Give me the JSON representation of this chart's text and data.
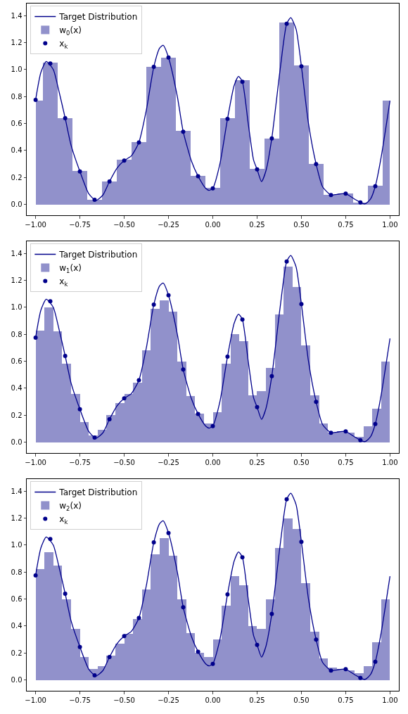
{
  "chart_data": [
    {
      "type": "histogram",
      "legend": "top left",
      "grid": false,
      "xlim": [
        -1.05,
        1.05
      ],
      "ylim": [
        -0.08,
        1.49
      ],
      "xticks": [
        {
          "value": -1,
          "label": "−1.00"
        },
        {
          "value": -0.75,
          "label": "−0.75"
        },
        {
          "value": -0.5,
          "label": "−0.50"
        },
        {
          "value": -0.25,
          "label": "−0.25"
        },
        {
          "value": 0,
          "label": "0.00"
        },
        {
          "value": 0.25,
          "label": "0.25"
        },
        {
          "value": 0.5,
          "label": "0.50"
        },
        {
          "value": 0.75,
          "label": "0.75"
        },
        {
          "value": 1,
          "label": "1.00"
        }
      ],
      "yticks": [
        {
          "value": 0,
          "label": "0.0"
        },
        {
          "value": 0.2,
          "label": "0.2"
        },
        {
          "value": 0.4,
          "label": "0.4"
        },
        {
          "value": 0.6,
          "label": "0.6"
        },
        {
          "value": 0.8,
          "label": "0.8"
        },
        {
          "value": 1,
          "label": "1.0"
        },
        {
          "value": 1.2,
          "label": "1.2"
        },
        {
          "value": 1.4,
          "label": "1.4"
        }
      ],
      "series": [
        {
          "type": "line",
          "name": "Target Distribution",
          "color": "#00008b",
          "x": [
            -1,
            -0.97,
            -0.94,
            -0.9,
            -0.87,
            -0.833,
            -0.8,
            -0.75,
            -0.7,
            -0.66,
            -0.62,
            -0.583,
            -0.54,
            -0.5,
            -0.46,
            -0.417,
            -0.375,
            -0.333,
            -0.3,
            -0.28,
            -0.25,
            -0.2,
            -0.167,
            -0.12,
            -0.083,
            -0.04,
            -0.02,
            0,
            0.04,
            0.083,
            0.12,
            0.145,
            0.167,
            0.2,
            0.23,
            0.25,
            0.275,
            0.3,
            0.333,
            0.38,
            0.417,
            0.44,
            0.47,
            0.5,
            0.54,
            0.583,
            0.62,
            0.667,
            0.7,
            0.75,
            0.8,
            0.833,
            0.86,
            0.89,
            0.917,
            0.95,
            1
          ],
          "values": [
            0.775,
            0.98,
            1.06,
            1.0,
            0.85,
            0.64,
            0.44,
            0.245,
            0.08,
            0.03,
            0.07,
            0.17,
            0.27,
            0.325,
            0.36,
            0.46,
            0.7,
            1.02,
            1.16,
            1.18,
            1.09,
            0.8,
            0.54,
            0.32,
            0.21,
            0.12,
            0.105,
            0.12,
            0.3,
            0.635,
            0.88,
            0.95,
            0.91,
            0.6,
            0.33,
            0.26,
            0.17,
            0.25,
            0.49,
            1.0,
            1.34,
            1.385,
            1.3,
            1.025,
            0.6,
            0.3,
            0.13,
            0.07,
            0.075,
            0.08,
            0.04,
            0.015,
            0.005,
            0.04,
            0.135,
            0.35,
            0.77
          ]
        },
        {
          "name": "w$_{0}$(x)",
          "color": "#9191cb",
          "bins": [
            -1,
            -0.958,
            -0.875,
            -0.792,
            -0.708,
            -0.625,
            -0.542,
            -0.458,
            -0.375,
            -0.292,
            -0.208,
            -0.125,
            -0.042,
            0.042,
            0.125,
            0.208,
            0.292,
            0.375,
            0.458,
            0.542,
            0.625,
            0.708,
            0.792,
            0.875,
            0.958,
            1
          ],
          "values": [
            0.77,
            1.05,
            0.64,
            0.25,
            0.035,
            0.17,
            0.33,
            0.46,
            1.02,
            1.09,
            0.545,
            0.21,
            0.125,
            0.64,
            0.92,
            0.265,
            0.49,
            1.35,
            1.03,
            0.3,
            0.07,
            0.08,
            0.015,
            0.14,
            0.77
          ]
        },
        {
          "type": "scatter",
          "name": "x$_{k}$",
          "color": "#00008b",
          "marker": "circle",
          "x": [
            -1,
            -0.917,
            -0.833,
            -0.75,
            -0.667,
            -0.583,
            -0.5,
            -0.417,
            -0.333,
            -0.25,
            -0.167,
            -0.083,
            0,
            0.083,
            0.167,
            0.25,
            0.333,
            0.417,
            0.5,
            0.583,
            0.667,
            0.75,
            0.833,
            0.917
          ],
          "values": [
            0.775,
            1.045,
            0.64,
            0.245,
            0.035,
            0.17,
            0.325,
            0.46,
            1.02,
            1.09,
            0.54,
            0.21,
            0.12,
            0.635,
            0.91,
            0.26,
            0.49,
            1.34,
            1.025,
            0.3,
            0.07,
            0.08,
            0.015,
            0.135
          ]
        }
      ]
    },
    {
      "type": "histogram",
      "legend": "top left",
      "grid": false,
      "xlim": [
        -1.05,
        1.05
      ],
      "ylim": [
        -0.08,
        1.49
      ],
      "xticks": [
        {
          "value": -1,
          "label": "−1.00"
        },
        {
          "value": -0.75,
          "label": "−0.75"
        },
        {
          "value": -0.5,
          "label": "−0.50"
        },
        {
          "value": -0.25,
          "label": "−0.25"
        },
        {
          "value": 0,
          "label": "0.00"
        },
        {
          "value": 0.25,
          "label": "0.25"
        },
        {
          "value": 0.5,
          "label": "0.50"
        },
        {
          "value": 0.75,
          "label": "0.75"
        },
        {
          "value": 1,
          "label": "1.00"
        }
      ],
      "yticks": [
        {
          "value": 0,
          "label": "0.0"
        },
        {
          "value": 0.2,
          "label": "0.2"
        },
        {
          "value": 0.4,
          "label": "0.4"
        },
        {
          "value": 0.6,
          "label": "0.6"
        },
        {
          "value": 0.8,
          "label": "0.8"
        },
        {
          "value": 1,
          "label": "1.0"
        },
        {
          "value": 1.2,
          "label": "1.2"
        },
        {
          "value": 1.4,
          "label": "1.4"
        }
      ],
      "series": [
        {
          "type": "line",
          "name": "Target Distribution",
          "color": "#00008b",
          "x": [
            -1,
            -0.97,
            -0.94,
            -0.9,
            -0.87,
            -0.833,
            -0.8,
            -0.75,
            -0.7,
            -0.66,
            -0.62,
            -0.583,
            -0.54,
            -0.5,
            -0.46,
            -0.417,
            -0.375,
            -0.333,
            -0.3,
            -0.28,
            -0.25,
            -0.2,
            -0.167,
            -0.12,
            -0.083,
            -0.04,
            -0.02,
            0,
            0.04,
            0.083,
            0.12,
            0.145,
            0.167,
            0.2,
            0.23,
            0.25,
            0.275,
            0.3,
            0.333,
            0.38,
            0.417,
            0.44,
            0.47,
            0.5,
            0.54,
            0.583,
            0.62,
            0.667,
            0.7,
            0.75,
            0.8,
            0.833,
            0.86,
            0.89,
            0.917,
            0.95,
            1
          ],
          "values": [
            0.775,
            0.98,
            1.06,
            1.0,
            0.85,
            0.64,
            0.44,
            0.245,
            0.08,
            0.03,
            0.07,
            0.17,
            0.27,
            0.325,
            0.36,
            0.46,
            0.7,
            1.02,
            1.16,
            1.18,
            1.09,
            0.8,
            0.54,
            0.32,
            0.21,
            0.12,
            0.105,
            0.12,
            0.3,
            0.635,
            0.88,
            0.95,
            0.91,
            0.6,
            0.33,
            0.26,
            0.17,
            0.25,
            0.49,
            1.0,
            1.34,
            1.385,
            1.3,
            1.025,
            0.6,
            0.3,
            0.13,
            0.07,
            0.075,
            0.08,
            0.04,
            0.015,
            0.005,
            0.04,
            0.135,
            0.35,
            0.77
          ]
        },
        {
          "name": "w$_{1}$(x)",
          "color": "#9191cb",
          "bins": [
            -1,
            -0.95,
            -0.9,
            -0.85,
            -0.8,
            -0.75,
            -0.7,
            -0.65,
            -0.6,
            -0.55,
            -0.5,
            -0.45,
            -0.4,
            -0.35,
            -0.3,
            -0.25,
            -0.2,
            -0.15,
            -0.1,
            -0.05,
            0,
            0.05,
            0.1,
            0.15,
            0.2,
            0.25,
            0.3,
            0.35,
            0.4,
            0.45,
            0.5,
            0.55,
            0.6,
            0.65,
            0.7,
            0.75,
            0.8,
            0.85,
            0.9,
            0.95,
            1
          ],
          "values": [
            0.83,
            1.0,
            0.82,
            0.58,
            0.36,
            0.15,
            0.05,
            0.09,
            0.2,
            0.29,
            0.36,
            0.44,
            0.68,
            0.99,
            1.05,
            0.97,
            0.6,
            0.34,
            0.21,
            0.14,
            0.22,
            0.58,
            0.8,
            0.75,
            0.35,
            0.38,
            0.55,
            0.95,
            1.3,
            1.15,
            0.72,
            0.35,
            0.14,
            0.07,
            0.08,
            0.07,
            0.04,
            0.12,
            0.25,
            0.6
          ]
        },
        {
          "type": "scatter",
          "name": "x$_{k}$",
          "color": "#00008b",
          "marker": "circle",
          "x": [
            -1,
            -0.917,
            -0.833,
            -0.75,
            -0.667,
            -0.583,
            -0.5,
            -0.417,
            -0.333,
            -0.25,
            -0.167,
            -0.083,
            0,
            0.083,
            0.167,
            0.25,
            0.333,
            0.417,
            0.5,
            0.583,
            0.667,
            0.75,
            0.833,
            0.917
          ],
          "values": [
            0.775,
            1.045,
            0.64,
            0.245,
            0.035,
            0.17,
            0.325,
            0.46,
            1.02,
            1.09,
            0.54,
            0.21,
            0.12,
            0.635,
            0.91,
            0.26,
            0.49,
            1.34,
            1.025,
            0.3,
            0.07,
            0.08,
            0.015,
            0.135
          ]
        }
      ]
    },
    {
      "type": "histogram",
      "legend": "top left",
      "grid": false,
      "xlim": [
        -1.05,
        1.05
      ],
      "ylim": [
        -0.08,
        1.49
      ],
      "xticks": [
        {
          "value": -1,
          "label": "−1.00"
        },
        {
          "value": -0.75,
          "label": "−0.75"
        },
        {
          "value": -0.5,
          "label": "−0.50"
        },
        {
          "value": -0.25,
          "label": "−0.25"
        },
        {
          "value": 0,
          "label": "0.00"
        },
        {
          "value": 0.25,
          "label": "0.25"
        },
        {
          "value": 0.5,
          "label": "0.50"
        },
        {
          "value": 0.75,
          "label": "0.75"
        },
        {
          "value": 1,
          "label": "1.00"
        }
      ],
      "yticks": [
        {
          "value": 0,
          "label": "0.0"
        },
        {
          "value": 0.2,
          "label": "0.2"
        },
        {
          "value": 0.4,
          "label": "0.4"
        },
        {
          "value": 0.6,
          "label": "0.6"
        },
        {
          "value": 0.8,
          "label": "0.8"
        },
        {
          "value": 1,
          "label": "1.0"
        },
        {
          "value": 1.2,
          "label": "1.2"
        },
        {
          "value": 1.4,
          "label": "1.4"
        }
      ],
      "series": [
        {
          "type": "line",
          "name": "Target Distribution",
          "color": "#00008b",
          "x": [
            -1,
            -0.97,
            -0.94,
            -0.9,
            -0.87,
            -0.833,
            -0.8,
            -0.75,
            -0.7,
            -0.66,
            -0.62,
            -0.583,
            -0.54,
            -0.5,
            -0.46,
            -0.417,
            -0.375,
            -0.333,
            -0.3,
            -0.28,
            -0.25,
            -0.2,
            -0.167,
            -0.12,
            -0.083,
            -0.04,
            -0.02,
            0,
            0.04,
            0.083,
            0.12,
            0.145,
            0.167,
            0.2,
            0.23,
            0.25,
            0.275,
            0.3,
            0.333,
            0.38,
            0.417,
            0.44,
            0.47,
            0.5,
            0.54,
            0.583,
            0.62,
            0.667,
            0.7,
            0.75,
            0.8,
            0.833,
            0.86,
            0.89,
            0.917,
            0.95,
            1
          ],
          "values": [
            0.775,
            0.98,
            1.06,
            1.0,
            0.85,
            0.64,
            0.44,
            0.245,
            0.08,
            0.03,
            0.07,
            0.17,
            0.27,
            0.325,
            0.36,
            0.46,
            0.7,
            1.02,
            1.16,
            1.18,
            1.09,
            0.8,
            0.54,
            0.32,
            0.21,
            0.12,
            0.105,
            0.12,
            0.3,
            0.635,
            0.88,
            0.95,
            0.91,
            0.6,
            0.33,
            0.26,
            0.17,
            0.25,
            0.49,
            1.0,
            1.34,
            1.385,
            1.3,
            1.025,
            0.6,
            0.3,
            0.13,
            0.07,
            0.075,
            0.08,
            0.04,
            0.015,
            0.005,
            0.04,
            0.135,
            0.35,
            0.77
          ]
        },
        {
          "name": "w$_{2}$(x)",
          "color": "#9191cb",
          "bins": [
            -1,
            -0.95,
            -0.9,
            -0.85,
            -0.8,
            -0.75,
            -0.7,
            -0.65,
            -0.6,
            -0.55,
            -0.5,
            -0.45,
            -0.4,
            -0.35,
            -0.3,
            -0.25,
            -0.2,
            -0.15,
            -0.1,
            -0.05,
            0,
            0.05,
            0.1,
            0.15,
            0.2,
            0.25,
            0.3,
            0.35,
            0.4,
            0.45,
            0.5,
            0.55,
            0.6,
            0.65,
            0.7,
            0.75,
            0.8,
            0.85,
            0.9,
            0.95,
            1
          ],
          "values": [
            0.82,
            0.95,
            0.85,
            0.6,
            0.38,
            0.17,
            0.08,
            0.1,
            0.18,
            0.27,
            0.34,
            0.45,
            0.67,
            0.93,
            1.05,
            0.92,
            0.6,
            0.35,
            0.2,
            0.17,
            0.3,
            0.55,
            0.77,
            0.7,
            0.4,
            0.38,
            0.6,
            0.98,
            1.2,
            1.12,
            0.72,
            0.36,
            0.16,
            0.09,
            0.08,
            0.07,
            0.05,
            0.1,
            0.28,
            0.6
          ]
        },
        {
          "type": "scatter",
          "name": "x$_{k}$",
          "color": "#00008b",
          "marker": "circle",
          "x": [
            -1,
            -0.917,
            -0.833,
            -0.75,
            -0.667,
            -0.583,
            -0.5,
            -0.417,
            -0.333,
            -0.25,
            -0.167,
            -0.083,
            0,
            0.083,
            0.167,
            0.25,
            0.333,
            0.417,
            0.5,
            0.583,
            0.667,
            0.75,
            0.833,
            0.917
          ],
          "values": [
            0.775,
            1.045,
            0.64,
            0.245,
            0.035,
            0.17,
            0.325,
            0.46,
            1.02,
            1.09,
            0.54,
            0.21,
            0.12,
            0.635,
            0.91,
            0.26,
            0.49,
            1.34,
            1.025,
            0.3,
            0.07,
            0.08,
            0.015,
            0.135
          ]
        }
      ]
    }
  ]
}
